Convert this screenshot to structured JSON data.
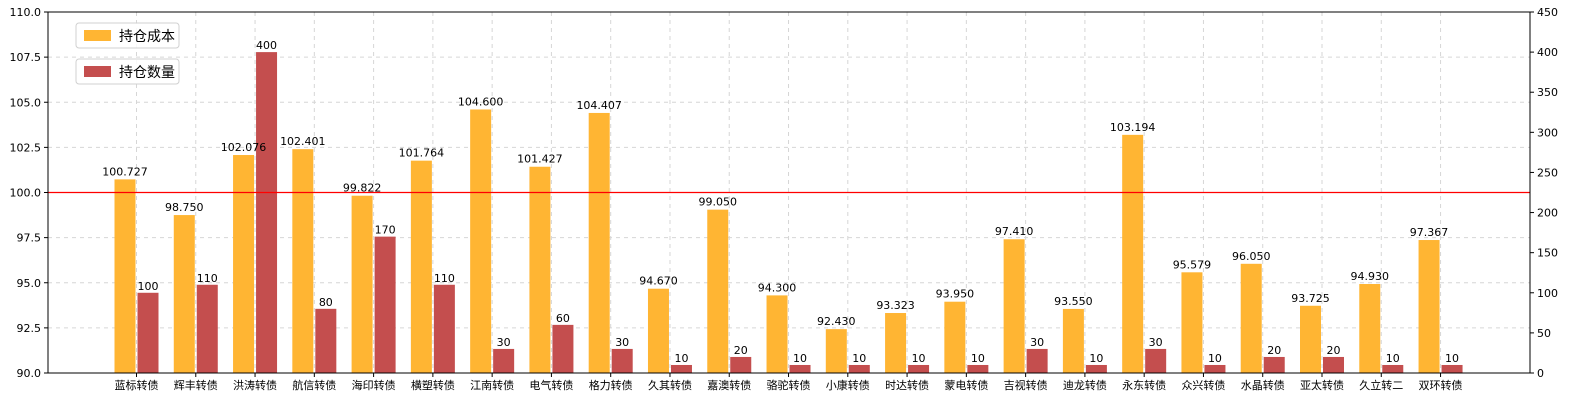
{
  "chart_data": {
    "type": "bar",
    "categories": [
      "蓝标转债",
      "辉丰转债",
      "洪涛转债",
      "航信转债",
      "海印转债",
      "横塑转债",
      "江南转债",
      "电气转债",
      "格力转债",
      "久其转债",
      "嘉澳转债",
      "骆驼转债",
      "小康转债",
      "时达转债",
      "蒙电转债",
      "吉视转债",
      "迪龙转债",
      "永东转债",
      "众兴转债",
      "水晶转债",
      "亚太转债",
      "久立转二",
      "双环转债"
    ],
    "series": [
      {
        "name": "持仓成本",
        "axis": "left",
        "color": "#FFB533",
        "values": [
          100.727,
          98.75,
          102.076,
          102.401,
          99.822,
          101.764,
          104.6,
          101.427,
          104.407,
          94.67,
          99.05,
          94.3,
          92.43,
          93.323,
          93.95,
          97.41,
          93.55,
          103.194,
          95.579,
          96.05,
          93.725,
          94.93,
          97.367
        ],
        "labels": [
          "100.727",
          "98.750",
          "102.076",
          "102.401",
          "99.822",
          "101.764",
          "104.600",
          "101.427",
          "104.407",
          "94.670",
          "99.050",
          "94.300",
          "92.430",
          "93.323",
          "93.950",
          "97.410",
          "93.550",
          "103.194",
          "95.579",
          "96.050",
          "93.725",
          "94.930",
          "97.367"
        ]
      },
      {
        "name": "持仓数量",
        "axis": "right",
        "color": "#C44E4E",
        "values": [
          100,
          110,
          400,
          80,
          170,
          110,
          30,
          60,
          30,
          10,
          20,
          10,
          10,
          10,
          10,
          30,
          10,
          30,
          10,
          20,
          20,
          10,
          10
        ],
        "labels": [
          "100",
          "110",
          "400",
          "80",
          "170",
          "110",
          "30",
          "60",
          "30",
          "10",
          "20",
          "10",
          "10",
          "10",
          "10",
          "30",
          "10",
          "30",
          "10",
          "20",
          "20",
          "10",
          "10"
        ]
      }
    ],
    "left_axis": {
      "ylim": [
        90.0,
        110.0
      ],
      "ticks": [
        90.0,
        92.5,
        95.0,
        97.5,
        100.0,
        102.5,
        105.0,
        107.5,
        110.0
      ],
      "tick_labels": [
        "90.0",
        "92.5",
        "95.0",
        "97.5",
        "100.0",
        "102.5",
        "105.0",
        "107.5",
        "110.0"
      ]
    },
    "right_axis": {
      "ylim": [
        0,
        450
      ],
      "ticks": [
        0,
        50,
        100,
        150,
        200,
        250,
        300,
        350,
        400,
        450
      ],
      "tick_labels": [
        "0",
        "50",
        "100",
        "150",
        "200",
        "250",
        "300",
        "350",
        "400",
        "450"
      ]
    },
    "reference_line": {
      "value": 100.0,
      "axis": "left",
      "color": "#FF0000"
    },
    "grid": true,
    "legend": {
      "placement": "top-left"
    }
  }
}
